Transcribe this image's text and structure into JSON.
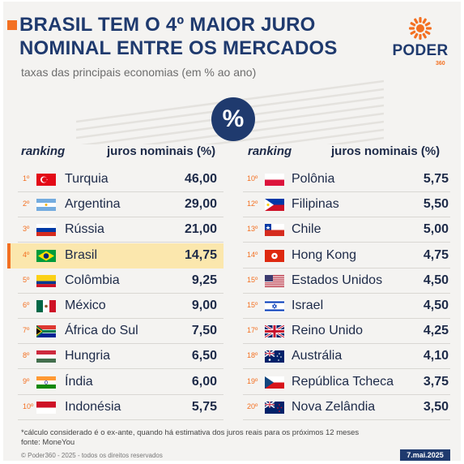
{
  "header": {
    "title_line1": "BRASIL TEM O 4º MAIOR JURO",
    "title_line2": "NOMINAL ENTRE OS MERCADOS",
    "subtitle": "taxas das principais economias (em % ao ano)",
    "logo_word": "PODER",
    "logo_number": "360",
    "badge_symbol": "%"
  },
  "colors": {
    "navy": "#1f3a6e",
    "orange": "#f37021",
    "highlight": "#fbe7ad",
    "background": "#f4f3f1"
  },
  "columns": {
    "ranking": "ranking",
    "juros": "juros nominais (%)"
  },
  "chart_data": {
    "type": "table",
    "title": "BRASIL TEM O 4º MAIOR JURO NOMINAL ENTRE OS MERCADOS",
    "subtitle": "taxas das principais economias (em % ao ano)",
    "columns": [
      "ranking",
      "juros nominais (%)"
    ],
    "left": [
      {
        "rank": "1º",
        "country": "Turquia",
        "value": "46,00",
        "flag": "tr"
      },
      {
        "rank": "2º",
        "country": "Argentina",
        "value": "29,00",
        "flag": "ar"
      },
      {
        "rank": "3º",
        "country": "Rússia",
        "value": "21,00",
        "flag": "ru"
      },
      {
        "rank": "4º",
        "country": "Brasil",
        "value": "14,75",
        "flag": "br",
        "highlight": true
      },
      {
        "rank": "5º",
        "country": "Colômbia",
        "value": "9,25",
        "flag": "co"
      },
      {
        "rank": "6º",
        "country": "México",
        "value": "9,00",
        "flag": "mx"
      },
      {
        "rank": "7º",
        "country": "África do Sul",
        "value": "7,50",
        "flag": "za"
      },
      {
        "rank": "8º",
        "country": "Hungria",
        "value": "6,50",
        "flag": "hu"
      },
      {
        "rank": "9º",
        "country": "Índia",
        "value": "6,00",
        "flag": "in"
      },
      {
        "rank": "10º",
        "country": "Indonésia",
        "value": "5,75",
        "flag": "id"
      }
    ],
    "right": [
      {
        "rank": "10º",
        "country": "Polônia",
        "value": "5,75",
        "flag": "pl"
      },
      {
        "rank": "12º",
        "country": "Filipinas",
        "value": "5,50",
        "flag": "ph"
      },
      {
        "rank": "13º",
        "country": "Chile",
        "value": "5,00",
        "flag": "cl"
      },
      {
        "rank": "14º",
        "country": "Hong Kong",
        "value": "4,75",
        "flag": "hk"
      },
      {
        "rank": "15º",
        "country": "Estados Unidos",
        "value": "4,50",
        "flag": "us"
      },
      {
        "rank": "15º",
        "country": "Israel",
        "value": "4,50",
        "flag": "il"
      },
      {
        "rank": "17º",
        "country": "Reino Unido",
        "value": "4,25",
        "flag": "gb"
      },
      {
        "rank": "18º",
        "country": "Austrália",
        "value": "4,10",
        "flag": "au"
      },
      {
        "rank": "19º",
        "country": "República Tcheca",
        "value": "3,75",
        "flag": "cz"
      },
      {
        "rank": "20º",
        "country": "Nova Zelândia",
        "value": "3,50",
        "flag": "nz"
      }
    ]
  },
  "footer": {
    "note": "*cálculo considerado é o ex-ante, quando há estimativa dos juros reais para os próximos 12 meses",
    "source": "fonte: MoneYou",
    "copyright": "© Poder360 - 2025 - todos os direitos reservados",
    "date": "7.mai.2025"
  }
}
